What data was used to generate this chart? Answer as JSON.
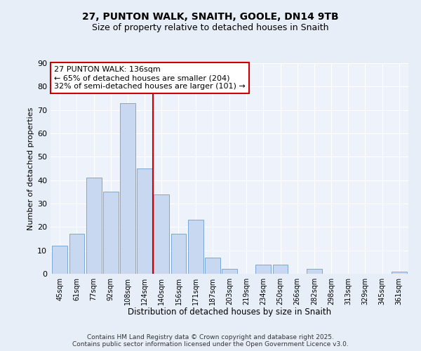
{
  "title": "27, PUNTON WALK, SNAITH, GOOLE, DN14 9TB",
  "subtitle": "Size of property relative to detached houses in Snaith",
  "xlabel": "Distribution of detached houses by size in Snaith",
  "ylabel": "Number of detached properties",
  "bar_labels": [
    "45sqm",
    "61sqm",
    "77sqm",
    "92sqm",
    "108sqm",
    "124sqm",
    "140sqm",
    "156sqm",
    "171sqm",
    "187sqm",
    "203sqm",
    "219sqm",
    "234sqm",
    "250sqm",
    "266sqm",
    "282sqm",
    "298sqm",
    "313sqm",
    "329sqm",
    "345sqm",
    "361sqm"
  ],
  "bar_values": [
    12,
    17,
    41,
    35,
    73,
    45,
    34,
    17,
    23,
    7,
    2,
    0,
    4,
    4,
    0,
    2,
    0,
    0,
    0,
    0,
    1
  ],
  "bar_color": "#c8d8f0",
  "bar_edge_color": "#7aa8d8",
  "vline_x": 5.5,
  "vline_color": "#cc0000",
  "annotation_box_text": "27 PUNTON WALK: 136sqm\n← 65% of detached houses are smaller (204)\n32% of semi-detached houses are larger (101) →",
  "annotation_box_edge_color": "#cc0000",
  "ylim": [
    0,
    90
  ],
  "yticks": [
    0,
    10,
    20,
    30,
    40,
    50,
    60,
    70,
    80,
    90
  ],
  "bg_color": "#e8eef8",
  "plot_bg_color": "#eef2fa",
  "footer_line1": "Contains HM Land Registry data © Crown copyright and database right 2025.",
  "footer_line2": "Contains public sector information licensed under the Open Government Licence v3.0.",
  "title_fontsize": 10,
  "subtitle_fontsize": 9,
  "grid_color": "#ffffff"
}
